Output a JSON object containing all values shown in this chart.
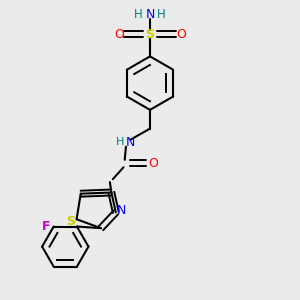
{
  "bg_color": "#ebebeb",
  "atom_colors": {
    "C": "#000000",
    "H": "#008080",
    "N": "#0000ff",
    "O": "#ff0000",
    "S_sul": "#cccc00",
    "S_thz": "#cccc00",
    "F": "#cc00cc"
  },
  "figsize": [
    3.0,
    3.0
  ],
  "dpi": 100
}
